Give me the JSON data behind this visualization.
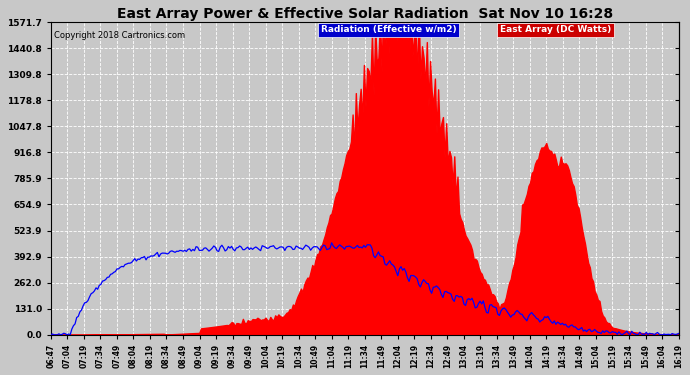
{
  "title": "East Array Power & Effective Solar Radiation  Sat Nov 10 16:28",
  "copyright": "Copyright 2018 Cartronics.com",
  "legend_radiation": "Radiation (Effective w/m2)",
  "legend_east": "East Array (DC Watts)",
  "yticks": [
    0.0,
    131.0,
    262.0,
    392.9,
    523.9,
    654.9,
    785.9,
    916.8,
    1047.8,
    1178.8,
    1309.8,
    1440.8,
    1571.7
  ],
  "ymax": 1571.7,
  "bg_color": "#c8c8c8",
  "plot_bg_color": "#c8c8c8",
  "grid_color": "#ffffff",
  "red_fill_color": "#ff0000",
  "blue_line_color": "#0000ff",
  "title_color": "#000000",
  "xtick_labels": [
    "06:47",
    "07:04",
    "07:19",
    "07:34",
    "07:49",
    "08:04",
    "08:19",
    "08:34",
    "08:49",
    "09:04",
    "09:19",
    "09:34",
    "09:49",
    "10:04",
    "10:19",
    "10:34",
    "10:49",
    "11:04",
    "11:19",
    "11:34",
    "11:49",
    "12:04",
    "12:19",
    "12:34",
    "12:49",
    "13:04",
    "13:19",
    "13:34",
    "13:49",
    "14:04",
    "14:19",
    "14:34",
    "14:49",
    "15:04",
    "15:19",
    "15:34",
    "15:49",
    "16:04",
    "16:19"
  ]
}
